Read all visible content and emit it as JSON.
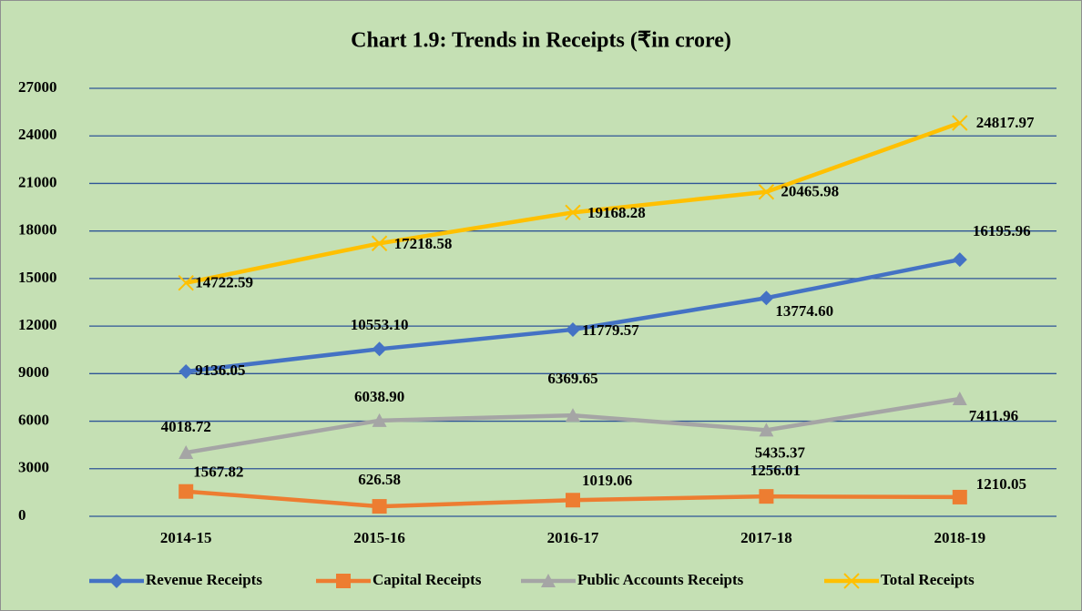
{
  "chart_data": {
    "type": "line",
    "title": "Chart 1.9: Trends in Receipts (₹in crore)",
    "categories": [
      "2014-15",
      "2015-16",
      "2016-17",
      "2017-18",
      "2018-19"
    ],
    "ylim": [
      0,
      27000
    ],
    "yticks": [
      0,
      3000,
      6000,
      9000,
      12000,
      15000,
      18000,
      21000,
      24000,
      27000
    ],
    "grid": true,
    "series": [
      {
        "name": "Revenue Receipts",
        "color": "#4472c4",
        "marker": "diamond",
        "values": [
          9136.05,
          10553.1,
          11779.57,
          13774.6,
          16195.96
        ],
        "value_labels": [
          "9136.05",
          "10553.10",
          "11779.57",
          "13774.60",
          "16195.96"
        ]
      },
      {
        "name": "Capital Receipts",
        "color": "#ed7d31",
        "marker": "square",
        "values": [
          1567.82,
          626.58,
          1019.06,
          1256.01,
          1210.05
        ],
        "value_labels": [
          "1567.82",
          "626.58",
          "1019.06",
          "1256.01",
          "1210.05"
        ]
      },
      {
        "name": "Public Accounts Receipts",
        "color": "#a5a5a5",
        "marker": "triangle",
        "values": [
          4018.72,
          6038.9,
          6369.65,
          5435.37,
          7411.96
        ],
        "value_labels": [
          "4018.72",
          "6038.90",
          "6369.65",
          "5435.37",
          "7411.96"
        ]
      },
      {
        "name": "Total Receipts",
        "color": "#ffc000",
        "marker": "x",
        "values": [
          14722.59,
          17218.58,
          19168.28,
          20465.98,
          24817.97
        ],
        "value_labels": [
          "14722.59",
          "17218.58",
          "19168.28",
          "20465.98",
          "24817.97"
        ]
      }
    ]
  }
}
